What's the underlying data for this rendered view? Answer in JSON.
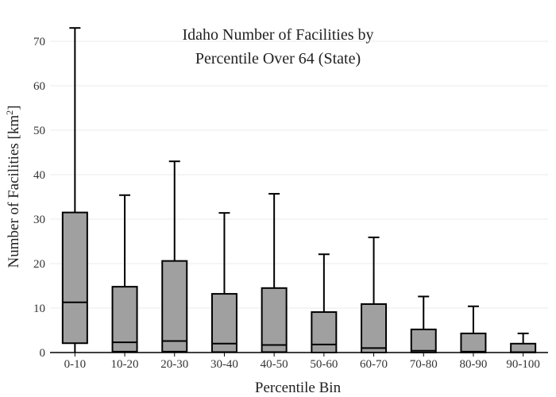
{
  "chart_data": {
    "type": "box",
    "title": [
      "Idaho Number of Facilities by",
      "Percentile Over 64 (State)"
    ],
    "xlabel": "Percentile Bin",
    "ylabel": "Number of Facilities  [km",
    "ylabel_sup": "2",
    "ylabel_close": "]",
    "ylim": [
      0,
      75
    ],
    "yticks": [
      0,
      10,
      20,
      30,
      40,
      50,
      60,
      70
    ],
    "grid": "horizontal",
    "colors": {
      "box_fill": "#a0a0a0",
      "box_stroke": "#000000",
      "grid": "#ebebeb"
    },
    "categories": [
      "0-10",
      "10-20",
      "20-30",
      "30-40",
      "40-50",
      "50-60",
      "60-70",
      "70-80",
      "80-90",
      "90-100"
    ],
    "boxes": [
      {
        "min": 0,
        "q1": 2.1,
        "median": 11.3,
        "q3": 31.5,
        "max": 73.0
      },
      {
        "min": 0,
        "q1": 0.2,
        "median": 2.3,
        "q3": 14.8,
        "max": 35.4
      },
      {
        "min": 0,
        "q1": 0.2,
        "median": 2.6,
        "q3": 20.6,
        "max": 43.0
      },
      {
        "min": 0,
        "q1": 0.1,
        "median": 2.0,
        "q3": 13.2,
        "max": 31.4
      },
      {
        "min": 0,
        "q1": 0.1,
        "median": 1.7,
        "q3": 14.5,
        "max": 35.7
      },
      {
        "min": 0,
        "q1": 0.0,
        "median": 1.8,
        "q3": 9.1,
        "max": 22.1
      },
      {
        "min": 0,
        "q1": 0.0,
        "median": 1.0,
        "q3": 10.9,
        "max": 25.9
      },
      {
        "min": 0,
        "q1": 0.0,
        "median": 0.4,
        "q3": 5.2,
        "max": 12.6
      },
      {
        "min": 0,
        "q1": 0.0,
        "median": 0.2,
        "q3": 4.3,
        "max": 10.4
      },
      {
        "min": 0,
        "q1": 0.0,
        "median": 0.1,
        "q3": 2.0,
        "max": 4.3
      }
    ]
  }
}
